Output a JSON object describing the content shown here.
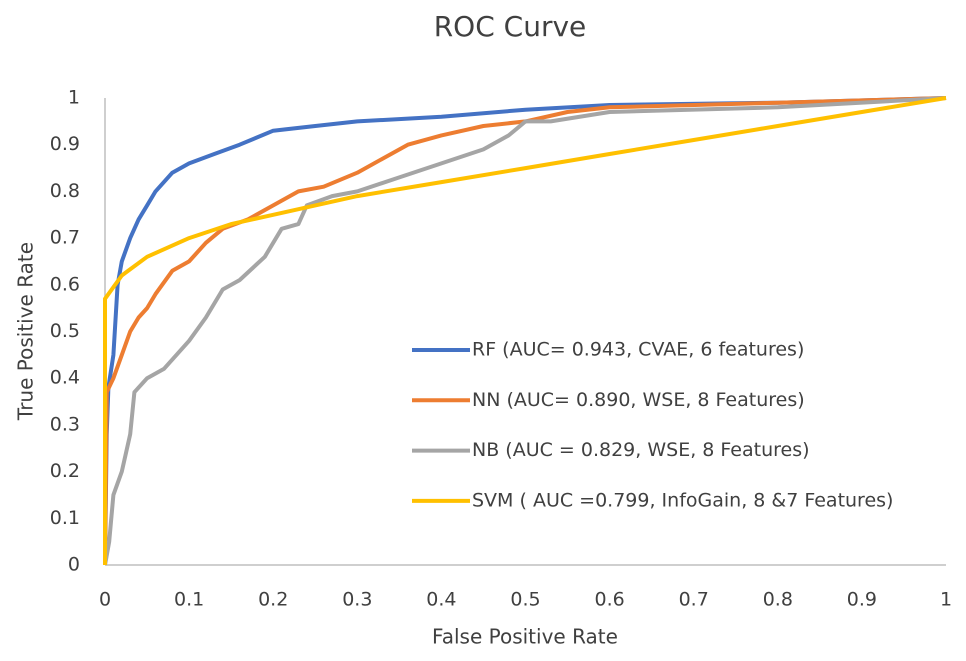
{
  "chart_data": {
    "type": "line",
    "title": "ROC Curve",
    "x_label": "False Positive Rate",
    "y_label": "True Positive Rate",
    "xlim": [
      0,
      1
    ],
    "ylim": [
      0,
      1
    ],
    "xticks": [
      0,
      0.1,
      0.2,
      0.3,
      0.4,
      0.5,
      0.6,
      0.7,
      0.8,
      0.9,
      1
    ],
    "yticks": [
      0,
      0.1,
      0.2,
      0.3,
      0.4,
      0.5,
      0.6,
      0.7,
      0.8,
      0.9,
      1
    ],
    "grid": false,
    "legend": "right",
    "series": [
      {
        "name": "RF (AUC= 0.943, CVAE, 6 features)",
        "color": "#4472c4",
        "x": [
          0,
          0.002,
          0.004,
          0.01,
          0.015,
          0.02,
          0.03,
          0.04,
          0.05,
          0.06,
          0.08,
          0.1,
          0.13,
          0.16,
          0.2,
          0.25,
          0.3,
          0.4,
          0.5,
          0.6,
          0.8,
          1
        ],
        "values": [
          0,
          0.28,
          0.38,
          0.45,
          0.6,
          0.65,
          0.7,
          0.74,
          0.77,
          0.8,
          0.84,
          0.86,
          0.88,
          0.9,
          0.93,
          0.94,
          0.95,
          0.96,
          0.975,
          0.985,
          0.99,
          1
        ]
      },
      {
        "name": "NN (AUC= 0.890, WSE, 8 Features)",
        "color": "#ed7d31",
        "x": [
          0,
          0.002,
          0.01,
          0.02,
          0.03,
          0.04,
          0.05,
          0.06,
          0.08,
          0.1,
          0.12,
          0.14,
          0.17,
          0.2,
          0.23,
          0.26,
          0.3,
          0.33,
          0.36,
          0.4,
          0.45,
          0.5,
          0.55,
          0.6,
          0.8,
          1
        ],
        "values": [
          0,
          0.37,
          0.4,
          0.45,
          0.5,
          0.53,
          0.55,
          0.58,
          0.63,
          0.65,
          0.69,
          0.72,
          0.74,
          0.77,
          0.8,
          0.81,
          0.84,
          0.87,
          0.9,
          0.92,
          0.94,
          0.95,
          0.97,
          0.98,
          0.99,
          1
        ]
      },
      {
        "name": "NB (AUC = 0.829, WSE, 8 Features)",
        "color": "#a5a5a5",
        "x": [
          0,
          0.005,
          0.01,
          0.02,
          0.03,
          0.035,
          0.05,
          0.07,
          0.1,
          0.12,
          0.14,
          0.16,
          0.19,
          0.21,
          0.23,
          0.24,
          0.27,
          0.3,
          0.35,
          0.4,
          0.45,
          0.48,
          0.5,
          0.53,
          0.6,
          0.8,
          1
        ],
        "values": [
          0,
          0.05,
          0.15,
          0.2,
          0.28,
          0.37,
          0.4,
          0.42,
          0.48,
          0.53,
          0.59,
          0.61,
          0.66,
          0.72,
          0.73,
          0.77,
          0.79,
          0.8,
          0.83,
          0.86,
          0.89,
          0.92,
          0.95,
          0.95,
          0.97,
          0.98,
          1
        ]
      },
      {
        "name": "SVM ( AUC =0.799, InfoGain, 8 &7 Features)",
        "color": "#ffc000",
        "x": [
          0,
          0,
          0.02,
          0.05,
          0.1,
          0.15,
          0.2,
          0.3,
          0.4,
          0.5,
          0.6,
          0.7,
          0.8,
          0.9,
          1
        ],
        "values": [
          0,
          0.57,
          0.62,
          0.66,
          0.7,
          0.73,
          0.75,
          0.79,
          0.82,
          0.85,
          0.88,
          0.91,
          0.94,
          0.97,
          1
        ]
      }
    ]
  }
}
